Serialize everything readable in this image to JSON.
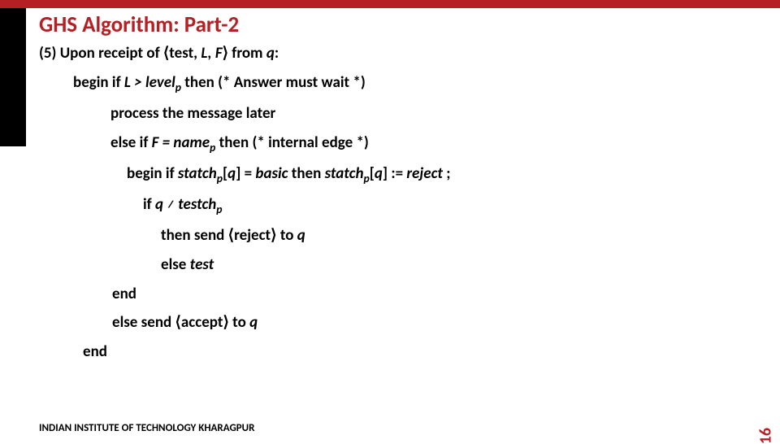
{
  "colors": {
    "accent": "#b61f24",
    "topbar": "#b61f24",
    "sidebar": "#000000",
    "text": "#000000",
    "background": "#ffffff"
  },
  "typography": {
    "title_fontsize": 27,
    "body_fontsize": 19,
    "footer_fontsize": 13,
    "pagenum_fontsize": 20,
    "font_family": "Calibri"
  },
  "title": "GHS Algorithm: Part-2",
  "lines": {
    "l1a": "(5) Upon receipt of ⟨test, ",
    "l1b": "L, F",
    "l1c": "⟩ from ",
    "l1d": "q",
    "l1e": ":",
    "l2a": "begin if ",
    "l2b": "L > level",
    "l2c": " then (* Answer must wait *)",
    "l3a": "process the message later",
    "l4a": "else if ",
    "l4b": "F = name",
    "l4c": " then (* internal edge *)",
    "l5a": "begin if ",
    "l5b": "statch",
    "l5c": "[",
    "l5d": "q",
    "l5e": "] = ",
    "l5f": "basic",
    "l5g": " then ",
    "l5h": "statch",
    "l5i": "[",
    "l5j": "q",
    "l5k": "] := ",
    "l5l": "reject ",
    "l5m": ";",
    "l6a": "if ",
    "l6b": "q ≠ testch",
    "l7a": "then send ⟨reject⟩ to ",
    "l7b": "q",
    "l7c": "else ",
    "l7d": "test",
    "l8a": "end",
    "l9a": "else send ⟨accept⟩ to ",
    "l9b": "q",
    "l10a": "end",
    "sub_p": "p"
  },
  "footer": "INDIAN INSTITUTE OF TECHNOLOGY KHARAGPUR",
  "page_number": "16"
}
